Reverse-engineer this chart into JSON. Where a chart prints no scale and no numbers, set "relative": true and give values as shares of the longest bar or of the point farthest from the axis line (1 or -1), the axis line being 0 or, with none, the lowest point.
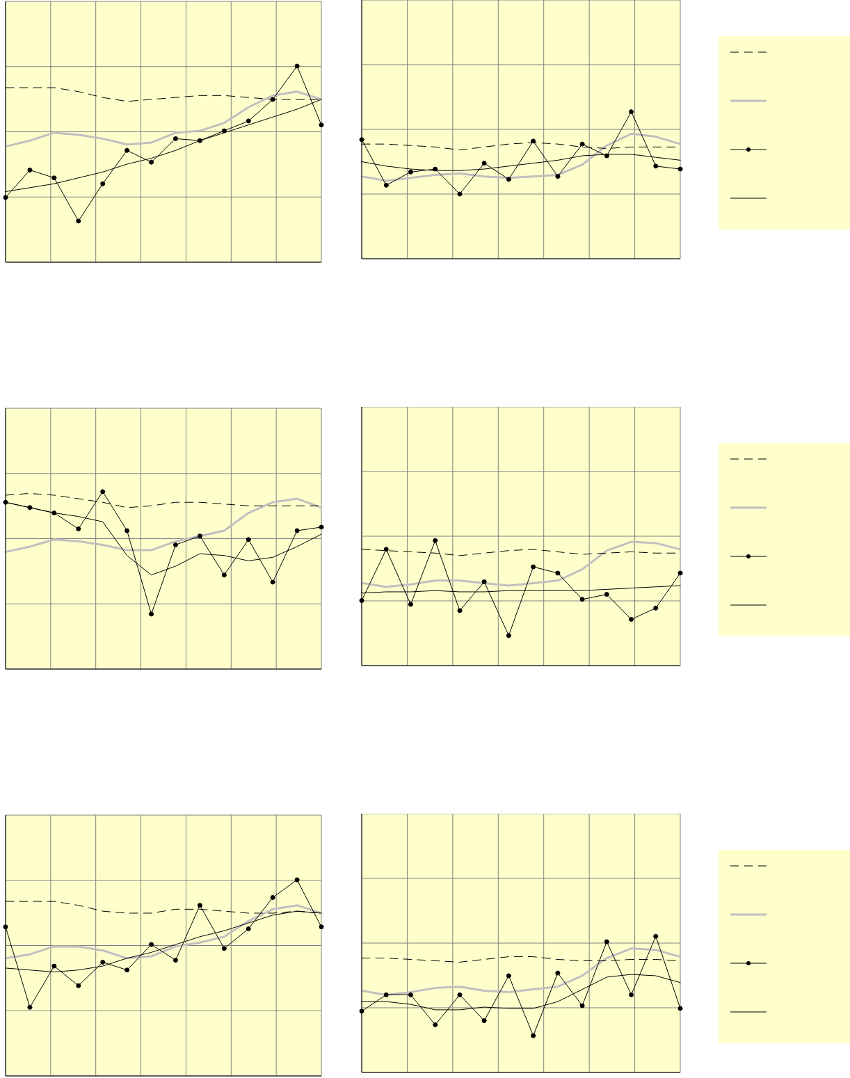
{
  "chart_data": [
    {
      "type": "line",
      "relative": true,
      "grid": true,
      "legend": false,
      "categories": [
        null,
        null,
        null,
        null,
        null,
        null,
        null,
        null,
        null,
        null,
        null,
        null,
        null,
        null
      ],
      "series": [
        {
          "color": "#000000",
          "line_style": "dashed",
          "marker": "none",
          "values": [
            0.89,
            0.89,
            0.89,
            0.87,
            0.84,
            0.82,
            0.83,
            0.84,
            0.85,
            0.85,
            0.84,
            0.83,
            0.83,
            0.83
          ]
        },
        {
          "color": "#c0c0c0",
          "line_style": "solid",
          "marker": "none",
          "values": [
            0.59,
            0.62,
            0.66,
            0.65,
            0.63,
            0.6,
            0.61,
            0.66,
            0.67,
            0.71,
            0.79,
            0.85,
            0.87,
            0.83
          ]
        },
        {
          "color": "#000000",
          "line_style": "solid",
          "marker": "circle",
          "values": [
            0.33,
            0.47,
            0.43,
            0.21,
            0.4,
            0.57,
            0.51,
            0.63,
            0.62,
            0.67,
            0.72,
            0.83,
            1,
            0.7
          ]
        },
        {
          "color": "#000000",
          "line_style": "solid",
          "marker": "none",
          "values": [
            0.36,
            0.38,
            0.4,
            0.43,
            0.46,
            0.5,
            0.53,
            0.57,
            0.62,
            0.66,
            0.7,
            0.74,
            0.78,
            0.83
          ]
        }
      ]
    },
    {
      "type": "line",
      "relative": true,
      "grid": true,
      "legend": false,
      "categories": [
        null,
        null,
        null,
        null,
        null,
        null,
        null,
        null,
        null,
        null,
        null,
        null,
        null,
        null
      ],
      "series": [
        {
          "color": "#000000",
          "line_style": "dashed",
          "marker": "none",
          "values": [
            0.78,
            0.78,
            0.77,
            0.76,
            0.74,
            0.76,
            0.78,
            0.79,
            0.78,
            0.76,
            0.75,
            0.76,
            0.76,
            0.76
          ]
        },
        {
          "color": "#c0c0c0",
          "line_style": "solid",
          "marker": "none",
          "values": [
            0.56,
            0.53,
            0.55,
            0.57,
            0.58,
            0.56,
            0.55,
            0.56,
            0.57,
            0.64,
            0.77,
            0.85,
            0.83,
            0.78
          ]
        },
        {
          "color": "#000000",
          "line_style": "solid",
          "marker": "circle",
          "values": [
            0.81,
            0.5,
            0.59,
            0.61,
            0.44,
            0.65,
            0.54,
            0.8,
            0.56,
            0.78,
            0.7,
            1,
            0.63,
            0.61
          ]
        },
        {
          "color": "#000000",
          "line_style": "solid",
          "marker": "none",
          "values": [
            0.66,
            0.63,
            0.61,
            0.6,
            0.6,
            0.61,
            0.63,
            0.65,
            0.67,
            0.7,
            0.71,
            0.71,
            0.69,
            0.67
          ]
        }
      ]
    },
    {
      "type": "line",
      "relative": true,
      "grid": true,
      "legend": false,
      "categories": [
        null,
        null,
        null,
        null,
        null,
        null,
        null,
        null,
        null,
        null,
        null,
        null,
        null,
        null
      ],
      "series": [
        {
          "color": "#000000",
          "line_style": "dashed",
          "marker": "none",
          "values": [
            0.98,
            0.99,
            0.98,
            0.96,
            0.94,
            0.91,
            0.92,
            0.94,
            0.94,
            0.93,
            0.92,
            0.92,
            0.92,
            0.92
          ]
        },
        {
          "color": "#c0c0c0",
          "line_style": "solid",
          "marker": "none",
          "values": [
            0.66,
            0.69,
            0.73,
            0.72,
            0.7,
            0.67,
            0.67,
            0.72,
            0.75,
            0.78,
            0.88,
            0.94,
            0.96,
            0.91
          ]
        },
        {
          "color": "#000000",
          "line_style": "solid",
          "marker": "circle",
          "values": [
            0.94,
            0.91,
            0.88,
            0.79,
            1,
            0.78,
            0.31,
            0.7,
            0.75,
            0.53,
            0.73,
            0.49,
            0.78,
            0.8
          ]
        },
        {
          "color": "#000000",
          "line_style": "solid",
          "marker": "none",
          "values": [
            0.94,
            0.91,
            0.88,
            0.86,
            0.83,
            0.64,
            0.53,
            0.58,
            0.65,
            0.64,
            0.61,
            0.63,
            0.69,
            0.76
          ]
        }
      ]
    },
    {
      "type": "line",
      "relative": true,
      "grid": true,
      "legend": false,
      "categories": [
        null,
        null,
        null,
        null,
        null,
        null,
        null,
        null,
        null,
        null,
        null,
        null,
        null,
        null
      ],
      "series": [
        {
          "color": "#000000",
          "line_style": "dashed",
          "marker": "none",
          "values": [
            0.93,
            0.92,
            0.91,
            0.9,
            0.88,
            0.9,
            0.92,
            0.93,
            0.91,
            0.89,
            0.9,
            0.91,
            0.9,
            0.9
          ]
        },
        {
          "color": "#c0c0c0",
          "line_style": "solid",
          "marker": "none",
          "values": [
            0.66,
            0.63,
            0.65,
            0.68,
            0.68,
            0.66,
            0.64,
            0.66,
            0.68,
            0.77,
            0.92,
            0.99,
            0.98,
            0.93
          ]
        },
        {
          "color": "#000000",
          "line_style": "solid",
          "marker": "circle",
          "values": [
            0.52,
            0.93,
            0.49,
            1,
            0.44,
            0.67,
            0.24,
            0.79,
            0.74,
            0.53,
            0.57,
            0.37,
            0.46,
            0.74
          ]
        },
        {
          "color": "#000000",
          "line_style": "solid",
          "marker": "none",
          "values": [
            0.58,
            0.59,
            0.59,
            0.6,
            0.59,
            0.59,
            0.6,
            0.6,
            0.6,
            0.6,
            0.61,
            0.62,
            0.63,
            0.64
          ]
        }
      ]
    },
    {
      "type": "line",
      "relative": true,
      "grid": true,
      "legend": false,
      "categories": [
        null,
        null,
        null,
        null,
        null,
        null,
        null,
        null,
        null,
        null,
        null,
        null,
        null,
        null
      ],
      "series": [
        {
          "color": "#000000",
          "line_style": "dashed",
          "marker": "none",
          "values": [
            0.89,
            0.89,
            0.89,
            0.87,
            0.84,
            0.83,
            0.83,
            0.85,
            0.85,
            0.84,
            0.83,
            0.83,
            0.84,
            0.83
          ]
        },
        {
          "color": "#c0c0c0",
          "line_style": "solid",
          "marker": "none",
          "values": [
            0.6,
            0.62,
            0.66,
            0.66,
            0.64,
            0.6,
            0.61,
            0.66,
            0.68,
            0.71,
            0.79,
            0.85,
            0.87,
            0.83
          ]
        },
        {
          "color": "#000000",
          "line_style": "solid",
          "marker": "circle",
          "values": [
            0.76,
            0.35,
            0.56,
            0.46,
            0.58,
            0.54,
            0.67,
            0.59,
            0.87,
            0.65,
            0.75,
            0.91,
            1,
            0.76
          ]
        },
        {
          "color": "#000000",
          "line_style": "solid",
          "marker": "none",
          "values": [
            0.55,
            0.54,
            0.53,
            0.54,
            0.56,
            0.6,
            0.63,
            0.67,
            0.71,
            0.74,
            0.78,
            0.82,
            0.84,
            0.83
          ]
        }
      ]
    },
    {
      "type": "line",
      "relative": true,
      "grid": true,
      "legend": false,
      "categories": [
        null,
        null,
        null,
        null,
        null,
        null,
        null,
        null,
        null,
        null,
        null,
        null,
        null,
        null
      ],
      "series": [
        {
          "color": "#000000",
          "line_style": "dashed",
          "marker": "none",
          "values": [
            0.84,
            0.84,
            0.83,
            0.82,
            0.81,
            0.83,
            0.85,
            0.85,
            0.83,
            0.82,
            0.82,
            0.83,
            0.83,
            0.82
          ]
        },
        {
          "color": "#c0c0c0",
          "line_style": "solid",
          "marker": "none",
          "values": [
            0.6,
            0.57,
            0.59,
            0.62,
            0.63,
            0.6,
            0.59,
            0.61,
            0.63,
            0.71,
            0.84,
            0.91,
            0.9,
            0.85
          ]
        },
        {
          "color": "#000000",
          "line_style": "solid",
          "marker": "circle",
          "values": [
            0.45,
            0.57,
            0.57,
            0.35,
            0.57,
            0.38,
            0.71,
            0.27,
            0.73,
            0.49,
            0.96,
            0.57,
            1,
            0.47
          ]
        },
        {
          "color": "#000000",
          "line_style": "solid",
          "marker": "none",
          "values": [
            0.52,
            0.52,
            0.5,
            0.46,
            0.46,
            0.48,
            0.47,
            0.47,
            0.52,
            0.61,
            0.7,
            0.72,
            0.71,
            0.66
          ]
        }
      ]
    }
  ]
}
